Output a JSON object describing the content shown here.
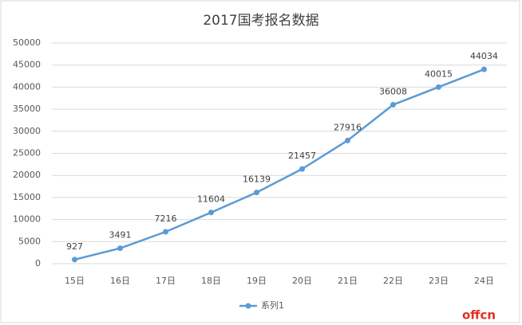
{
  "chart_data": {
    "type": "line",
    "title": "2017国考报名数据",
    "categories": [
      "15日",
      "16日",
      "17日",
      "18日",
      "19日",
      "20日",
      "21日",
      "22日",
      "23日",
      "24日"
    ],
    "series": [
      {
        "name": "系列1",
        "color": "#5b9bd5",
        "values": [
          927,
          3491,
          7216,
          11604,
          16139,
          21457,
          27916,
          36008,
          40015,
          44034
        ]
      }
    ],
    "ylim": [
      0,
      50000
    ],
    "yticks": [
      0,
      5000,
      10000,
      15000,
      20000,
      25000,
      30000,
      35000,
      40000,
      45000,
      50000
    ],
    "grid": true,
    "legend": "bottom",
    "watermark": "offcn"
  }
}
